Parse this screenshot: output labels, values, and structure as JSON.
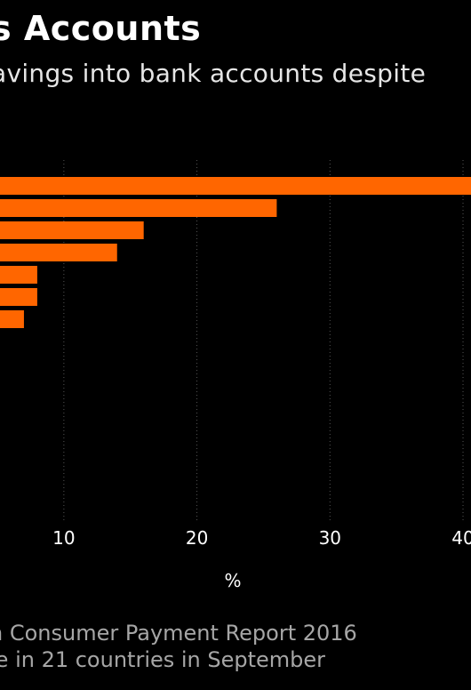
{
  "title": "s Accounts",
  "subtitle": "avings into bank accounts despite",
  "source_lines": [
    "n Consumer Payment Report 2016",
    "le in 21 countries in September"
  ],
  "colors": {
    "bar": "#ff6600",
    "background": "#000000",
    "grid": "#555555",
    "text": "#ffffff",
    "source": "#a6a6a6"
  },
  "chart_data": {
    "type": "bar",
    "orientation": "horizontal",
    "values": [
      41,
      26,
      16,
      14,
      8,
      8,
      7
    ],
    "xlabel": "%",
    "xticks": [
      10,
      20,
      30,
      40
    ],
    "xlim": [
      5,
      40.6
    ],
    "grid": true,
    "gridlines_at": [
      10,
      20,
      30,
      40
    ]
  }
}
